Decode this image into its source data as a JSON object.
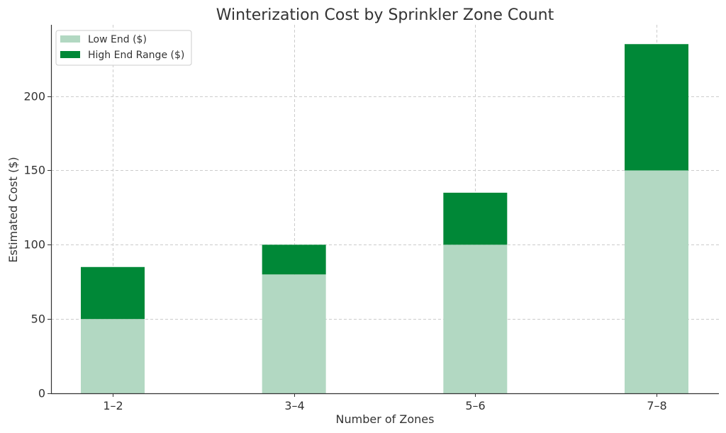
{
  "chart_data": {
    "type": "bar",
    "stacked": true,
    "title": "Winterization Cost by Sprinkler Zone Count",
    "xlabel": "Number of Zones",
    "ylabel": "Estimated Cost ($)",
    "categories": [
      "1–2",
      "3–4",
      "5–6",
      "7–8"
    ],
    "series": [
      {
        "name": "Low End ($)",
        "values": [
          50,
          80,
          100,
          150
        ],
        "color": "#b2d8c2"
      },
      {
        "name": "High End Range ($)",
        "values": [
          35,
          20,
          35,
          85
        ],
        "color": "#008837"
      }
    ],
    "ylim": [
      0,
      248
    ],
    "yticks": [
      0,
      50,
      100,
      150,
      200
    ],
    "grid": true,
    "legend_position": "top-left"
  }
}
